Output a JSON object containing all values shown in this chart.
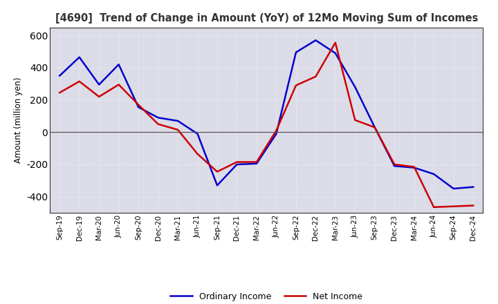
{
  "title": "[4690]  Trend of Change in Amount (YoY) of 12Mo Moving Sum of Incomes",
  "ylabel": "Amount (million yen)",
  "x_labels": [
    "Sep-19",
    "Dec-19",
    "Mar-20",
    "Jun-20",
    "Sep-20",
    "Dec-20",
    "Mar-21",
    "Jun-21",
    "Sep-21",
    "Dec-21",
    "Mar-22",
    "Jun-22",
    "Sep-22",
    "Dec-22",
    "Mar-23",
    "Jun-23",
    "Sep-23",
    "Dec-23",
    "Mar-24",
    "Jun-24",
    "Sep-24",
    "Dec-24"
  ],
  "ordinary_income": [
    350,
    465,
    295,
    420,
    155,
    90,
    70,
    -10,
    -330,
    -200,
    -195,
    -10,
    495,
    570,
    490,
    280,
    30,
    -210,
    -220,
    -260,
    -350,
    -340
  ],
  "net_income": [
    245,
    315,
    220,
    295,
    170,
    50,
    15,
    -135,
    -245,
    -185,
    -185,
    10,
    290,
    345,
    555,
    75,
    30,
    -200,
    -215,
    -465,
    -460,
    -455
  ],
  "ordinary_color": "#0000cc",
  "net_color": "#cc0000",
  "ylim": [
    -500,
    650
  ],
  "yticks": [
    -400,
    -200,
    0,
    200,
    400,
    600
  ],
  "bg_color": "#ffffff",
  "plot_bg_color": "#e8e8f0",
  "grid_color": "#999999",
  "title_color": "#333333"
}
